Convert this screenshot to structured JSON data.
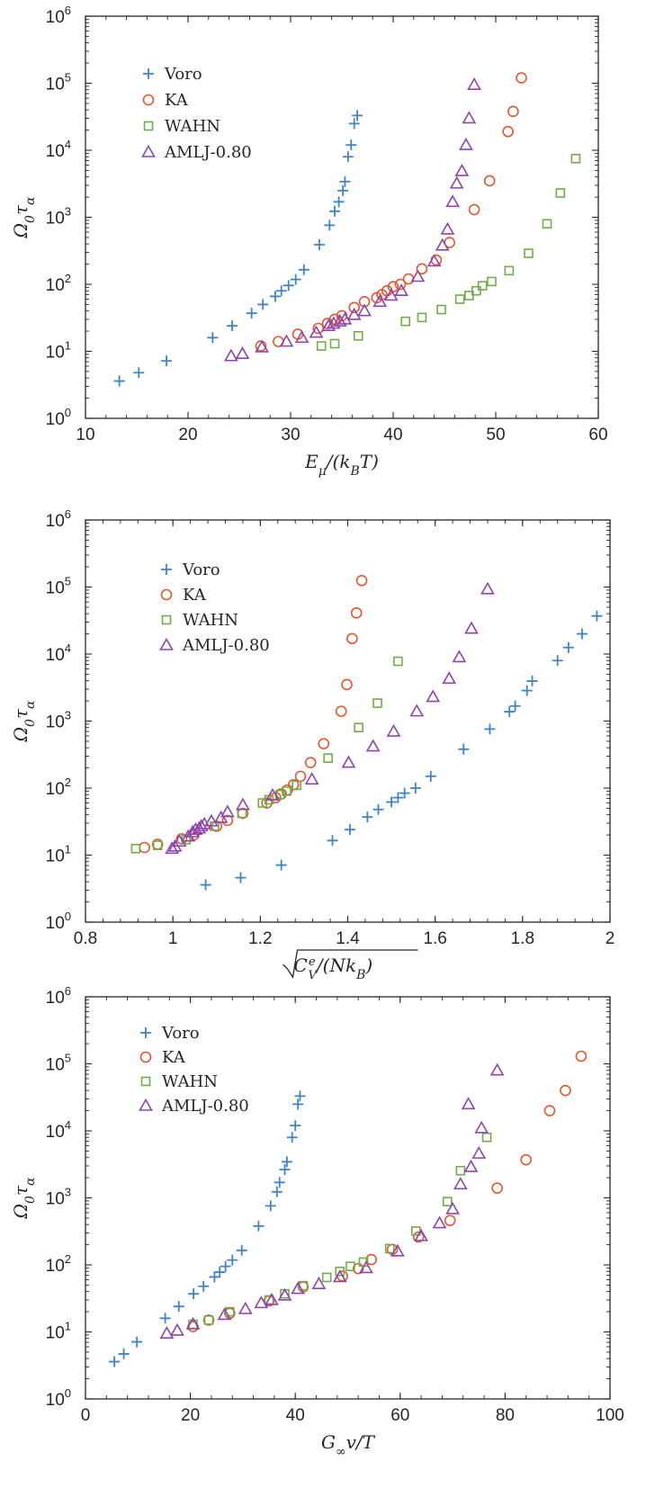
{
  "chart_data": [
    {
      "type": "scatter",
      "xlabel": "E_μ/(k_B T)",
      "ylabel": "Ω_0 τ_α",
      "xlim": [
        10,
        60
      ],
      "ylim_log10": [
        0,
        6
      ],
      "yscale": "log",
      "x_ticks": [
        "10",
        "20",
        "30",
        "40",
        "50",
        "60"
      ],
      "y_ticks": [
        "10^0",
        "10^1",
        "10^2",
        "10^3",
        "10^4",
        "10^5",
        "10^6"
      ],
      "legend_position": "top-left",
      "series": [
        {
          "name": "Voro",
          "marker": "plus",
          "color": "#3d85c6",
          "points": [
            [
              13.3,
              3.6
            ],
            [
              15.2,
              4.8
            ],
            [
              17.9,
              7.2
            ],
            [
              22.4,
              16
            ],
            [
              24.3,
              24
            ],
            [
              26.2,
              37
            ],
            [
              27.3,
              50
            ],
            [
              28.5,
              66
            ],
            [
              29.1,
              80
            ],
            [
              29.8,
              96
            ],
            [
              30.5,
              118
            ],
            [
              31.3,
              165
            ],
            [
              32.8,
              390
            ],
            [
              33.8,
              760
            ],
            [
              34.3,
              1230
            ],
            [
              34.7,
              1700
            ],
            [
              35.1,
              2500
            ],
            [
              35.3,
              3400
            ],
            [
              35.6,
              8000
            ],
            [
              35.9,
              12000
            ],
            [
              36.2,
              25000
            ],
            [
              36.5,
              33000
            ]
          ]
        },
        {
          "name": "KA",
          "marker": "circle",
          "color": "#e4572e",
          "points": [
            [
              27.1,
              12
            ],
            [
              28.8,
              14
            ],
            [
              30.7,
              18
            ],
            [
              32.7,
              22
            ],
            [
              33.6,
              26
            ],
            [
              34.3,
              30
            ],
            [
              35.0,
              34
            ],
            [
              36.2,
              45
            ],
            [
              37.2,
              55
            ],
            [
              38.4,
              63
            ],
            [
              38.9,
              70
            ],
            [
              39.4,
              80
            ],
            [
              40.0,
              92
            ],
            [
              40.7,
              100
            ],
            [
              41.5,
              120
            ],
            [
              42.8,
              170
            ],
            [
              44.2,
              230
            ],
            [
              45.5,
              420
            ],
            [
              47.9,
              1300
            ],
            [
              49.4,
              3500
            ],
            [
              51.2,
              19000
            ],
            [
              51.7,
              38000
            ],
            [
              52.5,
              120000
            ]
          ]
        },
        {
          "name": "WAHN",
          "marker": "square",
          "color": "#70ad47",
          "points": [
            [
              33.0,
              12
            ],
            [
              34.3,
              13
            ],
            [
              36.6,
              17
            ],
            [
              41.2,
              28
            ],
            [
              42.8,
              32
            ],
            [
              44.7,
              42
            ],
            [
              46.5,
              60
            ],
            [
              47.4,
              68
            ],
            [
              48.1,
              80
            ],
            [
              48.7,
              95
            ],
            [
              49.6,
              110
            ],
            [
              51.3,
              160
            ],
            [
              53.2,
              290
            ],
            [
              55.0,
              800
            ],
            [
              56.3,
              2300
            ],
            [
              57.8,
              7500
            ]
          ]
        },
        {
          "name": "AMLJ-0.80",
          "marker": "triangle",
          "color": "#8e44ad",
          "points": [
            [
              24.2,
              8.5
            ],
            [
              25.3,
              9.2
            ],
            [
              27.2,
              11.5
            ],
            [
              29.6,
              14
            ],
            [
              31.1,
              16
            ],
            [
              32.5,
              19
            ],
            [
              33.7,
              24
            ],
            [
              34.2,
              26
            ],
            [
              34.8,
              28
            ],
            [
              35.3,
              30
            ],
            [
              36.2,
              35
            ],
            [
              37.2,
              40
            ],
            [
              38.7,
              55
            ],
            [
              39.8,
              68
            ],
            [
              40.8,
              80
            ],
            [
              42.4,
              130
            ],
            [
              44.0,
              220
            ],
            [
              44.8,
              380
            ],
            [
              45.3,
              660
            ],
            [
              45.8,
              1700
            ],
            [
              46.2,
              3200
            ],
            [
              46.7,
              4900
            ],
            [
              47.1,
              12000
            ],
            [
              47.4,
              30000
            ],
            [
              47.9,
              95000
            ]
          ]
        }
      ]
    },
    {
      "type": "scatter",
      "xlabel": "√(C_V^e/(N k_B))",
      "ylabel": "Ω_0 τ_α",
      "xlim": [
        0.8,
        2.0
      ],
      "ylim_log10": [
        0,
        6
      ],
      "yscale": "log",
      "x_ticks": [
        "0.8",
        "1",
        "1.2",
        "1.4",
        "1.6",
        "1.8",
        "2"
      ],
      "y_ticks": [
        "10^0",
        "10^1",
        "10^2",
        "10^3",
        "10^4",
        "10^5",
        "10^6"
      ],
      "legend_position": "top-left",
      "series": [
        {
          "name": "Voro",
          "marker": "plus",
          "color": "#3d85c6",
          "points": [
            [
              1.075,
              3.6
            ],
            [
              1.155,
              4.6
            ],
            [
              1.248,
              7.1
            ],
            [
              1.365,
              16.5
            ],
            [
              1.405,
              24
            ],
            [
              1.445,
              37
            ],
            [
              1.47,
              48
            ],
            [
              1.5,
              62
            ],
            [
              1.515,
              72
            ],
            [
              1.53,
              84
            ],
            [
              1.555,
              100
            ],
            [
              1.59,
              150
            ],
            [
              1.665,
              380
            ],
            [
              1.725,
              760
            ],
            [
              1.77,
              1380
            ],
            [
              1.783,
              1680
            ],
            [
              1.81,
              2850
            ],
            [
              1.822,
              3950
            ],
            [
              1.88,
              8000
            ],
            [
              1.905,
              12500
            ],
            [
              1.936,
              20000
            ],
            [
              1.97,
              37000
            ]
          ]
        },
        {
          "name": "KA",
          "marker": "circle",
          "color": "#e4572e",
          "points": [
            [
              0.935,
              13
            ],
            [
              0.965,
              14.5
            ],
            [
              1.02,
              17.5
            ],
            [
              1.048,
              20
            ],
            [
              1.1,
              27
            ],
            [
              1.125,
              33
            ],
            [
              1.16,
              42
            ],
            [
              1.215,
              60
            ],
            [
              1.235,
              72
            ],
            [
              1.248,
              82
            ],
            [
              1.262,
              94
            ],
            [
              1.276,
              112
            ],
            [
              1.292,
              150
            ],
            [
              1.315,
              240
            ],
            [
              1.345,
              460
            ],
            [
              1.385,
              1400
            ],
            [
              1.398,
              3500
            ],
            [
              1.41,
              17000
            ],
            [
              1.42,
              41000
            ],
            [
              1.432,
              125000
            ]
          ]
        },
        {
          "name": "WAHN",
          "marker": "square",
          "color": "#70ad47",
          "points": [
            [
              0.915,
              12.5
            ],
            [
              0.965,
              14
            ],
            [
              1.03,
              17
            ],
            [
              1.095,
              27
            ],
            [
              1.158,
              42
            ],
            [
              1.205,
              60
            ],
            [
              1.22,
              67
            ],
            [
              1.245,
              80
            ],
            [
              1.26,
              90
            ],
            [
              1.283,
              110
            ],
            [
              1.355,
              280
            ],
            [
              1.425,
              800
            ],
            [
              1.468,
              1850
            ],
            [
              1.515,
              7800
            ]
          ]
        },
        {
          "name": "AMLJ-0.80",
          "marker": "triangle",
          "color": "#8e44ad",
          "points": [
            [
              0.998,
              12.5
            ],
            [
              1.005,
              13.5
            ],
            [
              1.015,
              16
            ],
            [
              1.035,
              19
            ],
            [
              1.045,
              22
            ],
            [
              1.052,
              24
            ],
            [
              1.06,
              25
            ],
            [
              1.065,
              27
            ],
            [
              1.072,
              29
            ],
            [
              1.088,
              32
            ],
            [
              1.11,
              36
            ],
            [
              1.125,
              44
            ],
            [
              1.16,
              56
            ],
            [
              1.228,
              78
            ],
            [
              1.318,
              135
            ],
            [
              1.402,
              240
            ],
            [
              1.458,
              420
            ],
            [
              1.505,
              700
            ],
            [
              1.558,
              1400
            ],
            [
              1.595,
              2300
            ],
            [
              1.632,
              4300
            ],
            [
              1.655,
              9000
            ],
            [
              1.683,
              24000
            ],
            [
              1.72,
              93000
            ]
          ]
        }
      ]
    },
    {
      "type": "scatter",
      "xlabel": "G_∞v/T",
      "ylabel": "Ω_0 τ_α",
      "xlim": [
        0,
        100
      ],
      "ylim_log10": [
        0,
        6
      ],
      "yscale": "log",
      "x_ticks": [
        "0",
        "20",
        "40",
        "60",
        "80",
        "100"
      ],
      "y_ticks": [
        "10^0",
        "10^1",
        "10^2",
        "10^3",
        "10^4",
        "10^5",
        "10^6"
      ],
      "legend_position": "top-left",
      "series": [
        {
          "name": "Voro",
          "marker": "plus",
          "color": "#3d85c6",
          "points": [
            [
              5.5,
              3.6
            ],
            [
              7.3,
              4.7
            ],
            [
              9.8,
              7.1
            ],
            [
              15.2,
              16
            ],
            [
              17.8,
              24
            ],
            [
              20.6,
              37
            ],
            [
              22.5,
              48
            ],
            [
              24.6,
              66
            ],
            [
              25.6,
              78
            ],
            [
              26.7,
              95
            ],
            [
              28.0,
              118
            ],
            [
              29.8,
              165
            ],
            [
              33.0,
              380
            ],
            [
              35.3,
              760
            ],
            [
              36.5,
              1230
            ],
            [
              37.0,
              1700
            ],
            [
              38.0,
              2650
            ],
            [
              38.4,
              3450
            ],
            [
              39.4,
              8000
            ],
            [
              40.0,
              12000
            ],
            [
              40.5,
              25000
            ],
            [
              40.9,
              33000
            ]
          ]
        },
        {
          "name": "KA",
          "marker": "circle",
          "color": "#e4572e",
          "points": [
            [
              20.5,
              12
            ],
            [
              23.5,
              15
            ],
            [
              27.5,
              19
            ],
            [
              35.0,
              29
            ],
            [
              41.5,
              47
            ],
            [
              49.0,
              68
            ],
            [
              52.0,
              88
            ],
            [
              54.5,
              120
            ],
            [
              58.5,
              170
            ],
            [
              63.5,
              260
            ],
            [
              69.5,
              460
            ],
            [
              78.5,
              1400
            ],
            [
              84.0,
              3700
            ],
            [
              88.5,
              20000
            ],
            [
              91.5,
              40000
            ],
            [
              94.5,
              130000
            ]
          ]
        },
        {
          "name": "WAHN",
          "marker": "square",
          "color": "#70ad47",
          "points": [
            [
              20.5,
              13
            ],
            [
              23.5,
              15
            ],
            [
              27.5,
              20
            ],
            [
              35.0,
              30
            ],
            [
              38.0,
              37
            ],
            [
              41.5,
              49
            ],
            [
              46.0,
              65
            ],
            [
              48.5,
              80
            ],
            [
              50.5,
              95
            ],
            [
              53.0,
              110
            ],
            [
              58.0,
              175
            ],
            [
              63.0,
              320
            ],
            [
              69.0,
              880
            ],
            [
              71.5,
              2550
            ],
            [
              76.5,
              8000
            ]
          ]
        },
        {
          "name": "AMLJ-0.80",
          "marker": "triangle",
          "color": "#8e44ad",
          "points": [
            [
              15.5,
              9.5
            ],
            [
              17.5,
              10.5
            ],
            [
              20.5,
              13
            ],
            [
              26.5,
              18
            ],
            [
              30.5,
              22
            ],
            [
              33.5,
              27
            ],
            [
              35.5,
              30
            ],
            [
              38.0,
              35
            ],
            [
              40.5,
              44
            ],
            [
              44.5,
              52
            ],
            [
              48.5,
              66
            ],
            [
              53.5,
              90
            ],
            [
              59.5,
              160
            ],
            [
              64.0,
              270
            ],
            [
              67.5,
              420
            ],
            [
              70.0,
              680
            ],
            [
              71.5,
              1600
            ],
            [
              73.5,
              2900
            ],
            [
              75.0,
              4600
            ],
            [
              75.5,
              11000
            ],
            [
              73.0,
              25000
            ],
            [
              78.5,
              80000
            ]
          ]
        }
      ]
    }
  ]
}
